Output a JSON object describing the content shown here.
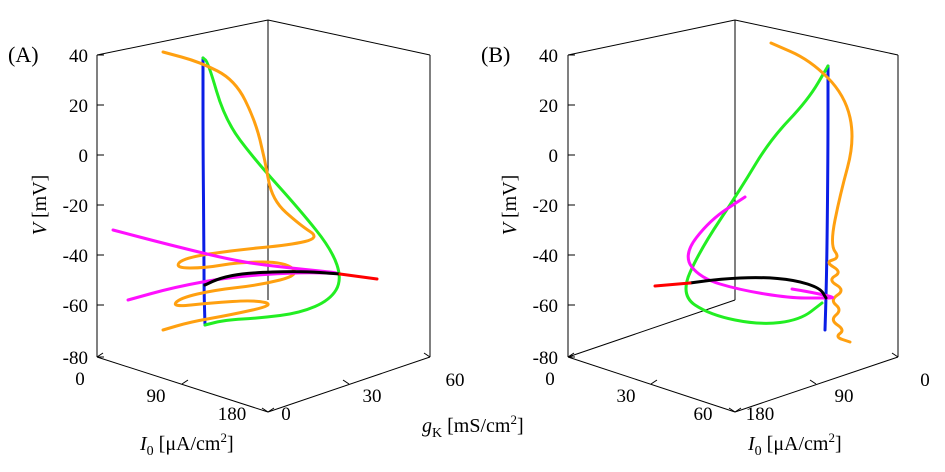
{
  "chart_data": [
    {
      "type": "line3d",
      "panel_label": "(A)",
      "zlabel_sym": "V",
      "zlabel_unit": "[mV]",
      "xlabel_sym": "I",
      "xlabel_sub": "0",
      "xlabel_unit": "[μA/cm",
      "xlabel_sup": "2",
      "xlabel_close": "]",
      "ylabel_sym": "g",
      "ylabel_sub": "K",
      "ylabel_unit": "[mS/cm",
      "ylabel_sup": "2",
      "ylabel_close": "]",
      "zlim": [
        -80,
        40
      ],
      "z_ticks": [
        "40",
        "20",
        "0",
        "-20",
        "-40",
        "-60",
        "-80"
      ],
      "i0_ticks": [
        "0",
        "90",
        "180"
      ],
      "gk_ticks": [
        "0",
        "30",
        "60"
      ],
      "series": [
        {
          "name": "blue",
          "color": "#0b1ee6",
          "screen": [
            [
              203,
              58
            ],
            [
              203,
              150
            ],
            [
              204,
              250
            ],
            [
              204,
              290
            ],
            [
              205,
              325
            ]
          ]
        },
        {
          "name": "green",
          "color": "#22ee22",
          "screen": [
            [
              203,
              58
            ],
            [
              208,
              62
            ],
            [
              225,
              120
            ],
            [
              255,
              160
            ],
            [
              300,
              210
            ],
            [
              332,
              250
            ],
            [
              342,
              280
            ],
            [
              330,
              300
            ],
            [
              300,
              313
            ],
            [
              260,
              318
            ],
            [
              225,
              320
            ],
            [
              205,
              325
            ]
          ]
        },
        {
          "name": "orange",
          "color": "#ffa010",
          "screen": [
            [
              163,
              52
            ],
            [
              200,
              62
            ],
            [
              235,
              80
            ],
            [
              255,
              120
            ],
            [
              265,
              160
            ],
            [
              272,
              200
            ],
            [
              300,
              225
            ],
            [
              320,
              238
            ],
            [
              290,
              245
            ],
            [
              235,
              250
            ],
            [
              183,
              258
            ],
            [
              175,
              268
            ],
            [
              205,
              268
            ],
            [
              240,
              262
            ],
            [
              285,
              262
            ],
            [
              300,
              275
            ],
            [
              260,
              285
            ],
            [
              215,
              290
            ],
            [
              180,
              298
            ],
            [
              172,
              307
            ],
            [
              210,
              303
            ],
            [
              255,
              300
            ],
            [
              275,
              305
            ],
            [
              230,
              315
            ],
            [
              190,
              322
            ],
            [
              163,
              330
            ]
          ]
        },
        {
          "name": "magenta",
          "color": "#ff10ff",
          "screen": [
            [
              113,
              230
            ],
            [
              170,
              245
            ],
            [
              240,
              262
            ],
            [
              290,
              268
            ],
            [
              350,
              274
            ],
            [
              300,
              272
            ],
            [
              230,
              277
            ],
            [
              175,
              287
            ],
            [
              128,
              300
            ]
          ]
        },
        {
          "name": "black",
          "color": "#000000",
          "screen": [
            [
              205,
              285
            ],
            [
              220,
              278
            ],
            [
              245,
              273
            ],
            [
              300,
              271
            ],
            [
              340,
              274
            ]
          ]
        },
        {
          "name": "red",
          "color": "#ff0000",
          "screen": [
            [
              340,
              274
            ],
            [
              377,
              279
            ]
          ]
        }
      ]
    },
    {
      "type": "line3d",
      "panel_label": "(B)",
      "zlabel_sym": "V",
      "zlabel_unit": "[mV]",
      "xlabel_sym": "I",
      "xlabel_sub": "0",
      "xlabel_unit": "[μA/cm",
      "xlabel_sup": "2",
      "xlabel_close": "]",
      "zlim": [
        -80,
        40
      ],
      "z_ticks": [
        "40",
        "20",
        "0",
        "-20",
        "-40",
        "-60",
        "-80"
      ],
      "gk_ticks": [
        "0",
        "30",
        "60"
      ],
      "i0_ticks": [
        "180",
        "90",
        "0"
      ],
      "series": [
        {
          "name": "blue",
          "color": "#0b1ee6",
          "screen": [
            [
              828,
              66
            ],
            [
              828,
              150
            ],
            [
              827,
              250
            ],
            [
              826,
              298
            ],
            [
              825,
              330
            ]
          ]
        },
        {
          "name": "green",
          "color": "#22ee22",
          "screen": [
            [
              828,
              66
            ],
            [
              808,
              100
            ],
            [
              770,
              140
            ],
            [
              740,
              190
            ],
            [
              700,
              250
            ],
            [
              680,
              295
            ],
            [
              710,
              315
            ],
            [
              760,
              325
            ],
            [
              800,
              320
            ],
            [
              822,
              303
            ]
          ]
        },
        {
          "name": "orange",
          "color": "#ffa010",
          "screen": [
            [
              771,
              43
            ],
            [
              810,
              60
            ],
            [
              845,
              95
            ],
            [
              855,
              140
            ],
            [
              840,
              195
            ],
            [
              830,
              245
            ],
            [
              840,
              258
            ],
            [
              825,
              262
            ],
            [
              842,
              272
            ],
            [
              828,
              280
            ],
            [
              845,
              290
            ],
            [
              830,
              300
            ],
            [
              842,
              310
            ],
            [
              830,
              320
            ],
            [
              845,
              330
            ],
            [
              835,
              337
            ],
            [
              850,
              342
            ]
          ]
        },
        {
          "name": "magenta",
          "color": "#ff10ff",
          "screen": [
            [
              745,
              197
            ],
            [
              710,
              220
            ],
            [
              683,
              255
            ],
            [
              700,
              278
            ],
            [
              740,
              290
            ],
            [
              790,
              298
            ],
            [
              820,
              298
            ],
            [
              838,
              298
            ],
            [
              810,
              292
            ],
            [
              792,
              289
            ]
          ]
        },
        {
          "name": "black",
          "color": "#000000",
          "screen": [
            [
              690,
              283
            ],
            [
              720,
              279
            ],
            [
              760,
              277
            ],
            [
              795,
              280
            ],
            [
              820,
              288
            ],
            [
              826,
              298
            ]
          ]
        },
        {
          "name": "red",
          "color": "#ff0000",
          "screen": [
            [
              655,
              286
            ],
            [
              690,
              283
            ]
          ]
        }
      ]
    }
  ]
}
